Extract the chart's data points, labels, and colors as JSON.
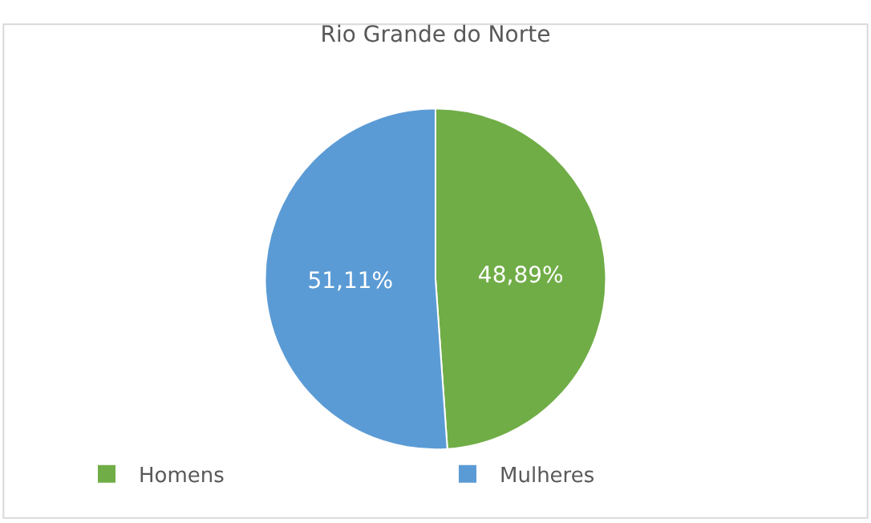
{
  "chart_data": {
    "type": "pie",
    "title": "Rio Grande do Norte",
    "categories": [
      "Homens",
      "Mulheres"
    ],
    "values": [
      48.89,
      51.11
    ],
    "colors": [
      "#70ad47",
      "#5b9bd5"
    ],
    "value_labels": [
      "48,89%",
      "51,11%"
    ],
    "legend": "bottom"
  }
}
